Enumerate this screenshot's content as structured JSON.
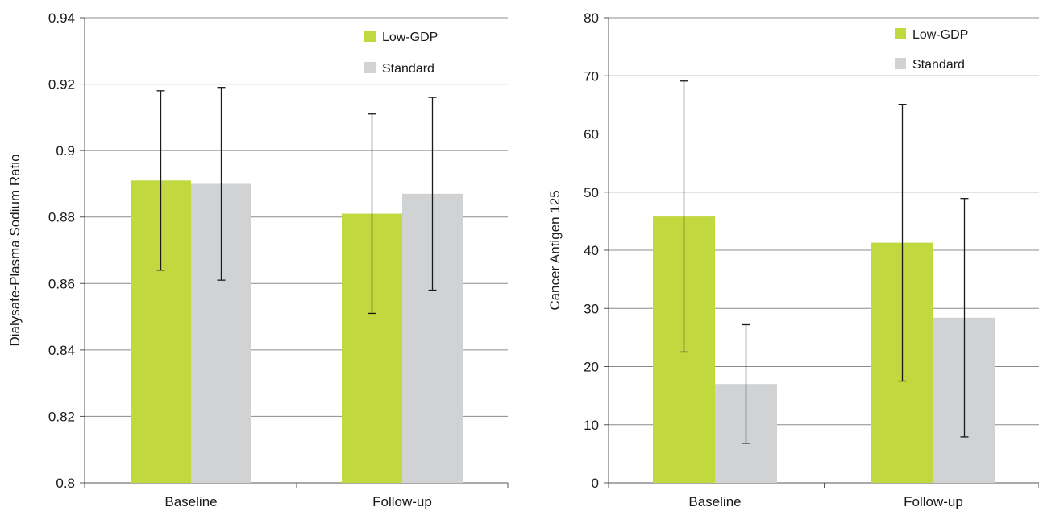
{
  "chart_data": [
    {
      "type": "bar",
      "title": "",
      "xlabel": "",
      "ylabel": "Dialysate-Plasma Sodium Ratio",
      "ylim": [
        0.8,
        0.94
      ],
      "yticks": [
        "0.8",
        "0.82",
        "0.84",
        "0.86",
        "0.88",
        "0.9",
        "0.92",
        "0.94"
      ],
      "categories": [
        "Baseline",
        "Follow-up"
      ],
      "grid": "horizontal",
      "legend": "top-right",
      "series": [
        {
          "name": "Low-GDP",
          "color": "#c2d83f",
          "values": [
            0.891,
            0.881
          ],
          "err_low": [
            0.864,
            0.851
          ],
          "err_high": [
            0.918,
            0.911
          ]
        },
        {
          "name": "Standard",
          "color": "#d1d2d4",
          "values": [
            0.89,
            0.887
          ],
          "err_low": [
            0.861,
            0.858
          ],
          "err_high": [
            0.919,
            0.916
          ]
        }
      ]
    },
    {
      "type": "bar",
      "title": "",
      "xlabel": "",
      "ylabel": "Cancer Antigen 125",
      "ylim": [
        0,
        80
      ],
      "yticks": [
        "0",
        "10",
        "20",
        "30",
        "40",
        "50",
        "60",
        "70",
        "80"
      ],
      "categories": [
        "Baseline",
        "Follow-up"
      ],
      "grid": "horizontal",
      "legend": "top-right",
      "series": [
        {
          "name": "Low-GDP",
          "color": "#c2d83f",
          "values": [
            45.8,
            41.3
          ],
          "err_low": [
            22.5,
            17.5
          ],
          "err_high": [
            69.1,
            65.1
          ]
        },
        {
          "name": "Standard",
          "color": "#d1d2d4",
          "values": [
            17.0,
            28.4
          ],
          "err_low": [
            6.8,
            7.9
          ],
          "err_high": [
            27.2,
            48.9
          ]
        }
      ]
    }
  ]
}
